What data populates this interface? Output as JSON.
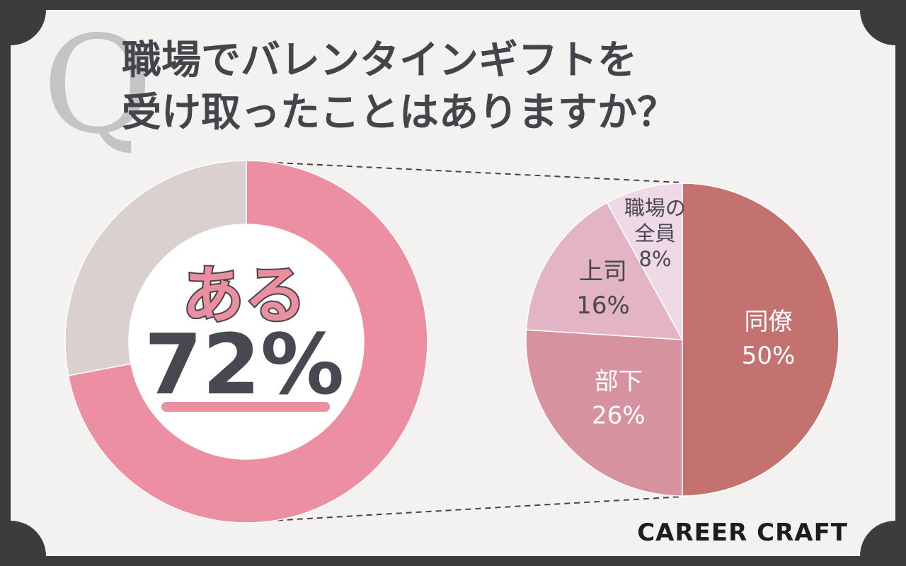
{
  "title": {
    "q_mark": "Q",
    "line1": "職場でバレンタインギフトを",
    "line2": "受け取ったことはありますか？"
  },
  "center": {
    "label": "ある",
    "value_text": "72%"
  },
  "brand": "CAREER CRAFT",
  "colors": {
    "page_bg": "#3e3b3f",
    "card_bg": "#f4f1f1",
    "donut_yes": "#ec8fa2",
    "donut_no": "#d9d0cf",
    "underline": "#ec8fa2"
  },
  "chart_data": [
    {
      "type": "pie",
      "variant": "donut",
      "slices": [
        {
          "label": "ある",
          "value": 72,
          "color": "#ec8fa2"
        },
        {
          "label": "",
          "value": 28,
          "color": "#d9d0cf"
        }
      ]
    },
    {
      "type": "pie",
      "slices": [
        {
          "label": "同僚",
          "value": 50,
          "value_text": "50%",
          "color": "#c3726f",
          "text_color": "#ffffff"
        },
        {
          "label": "部下",
          "value": 26,
          "value_text": "26%",
          "color": "#d7929f",
          "text_color": "#ffffff"
        },
        {
          "label": "上司",
          "value": 16,
          "value_text": "16%",
          "color": "#e3b4c3",
          "text_color": "#4a4750"
        },
        {
          "label": "職場の\n全員",
          "value": 8,
          "value_text": "8%",
          "color": "#f0d9e6",
          "text_color": "#4a4750"
        }
      ]
    }
  ]
}
